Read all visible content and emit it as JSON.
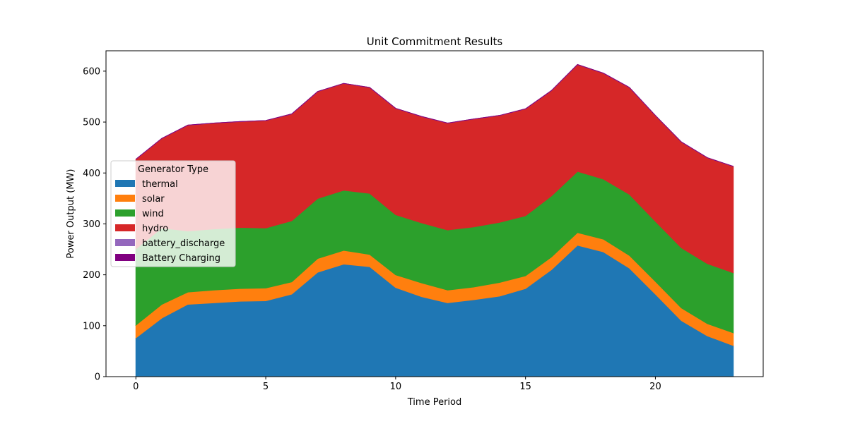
{
  "chart_data": {
    "type": "area",
    "stacked": true,
    "title": "Unit Commitment Results",
    "xlabel": "Time Period",
    "ylabel": "Power Output (MW)",
    "xlim": [
      -1.15,
      24.15
    ],
    "ylim": [
      0,
      640
    ],
    "xticks": [
      0,
      5,
      10,
      15,
      20
    ],
    "yticks": [
      0,
      100,
      200,
      300,
      400,
      500,
      600
    ],
    "grid": false,
    "legend": {
      "title": "Generator Type",
      "position": "center-left"
    },
    "x": [
      0,
      1,
      2,
      3,
      4,
      5,
      6,
      7,
      8,
      9,
      10,
      11,
      12,
      13,
      14,
      15,
      16,
      17,
      18,
      19,
      20,
      21,
      22,
      23
    ],
    "series": [
      {
        "name": "thermal",
        "color": "#1f77b4",
        "values": [
          76,
          115,
          142,
          145,
          148,
          149,
          162,
          205,
          221,
          216,
          175,
          157,
          145,
          151,
          158,
          173,
          210,
          258,
          245,
          213,
          162,
          110,
          80,
          61
        ]
      },
      {
        "name": "solar",
        "color": "#ff7f0e",
        "values": [
          25,
          27,
          24,
          25,
          25,
          25,
          24,
          27,
          27,
          24,
          25,
          27,
          25,
          25,
          27,
          25,
          25,
          25,
          25,
          25,
          25,
          25,
          24,
          25
        ]
      },
      {
        "name": "wind",
        "color": "#2ca02c",
        "values": [
          150,
          150,
          120,
          120,
          120,
          118,
          120,
          118,
          118,
          120,
          118,
          118,
          118,
          118,
          118,
          118,
          120,
          120,
          118,
          120,
          118,
          118,
          118,
          118
        ]
      },
      {
        "name": "hydro",
        "color": "#d62728",
        "values": [
          176,
          176,
          208,
          208,
          208,
          211,
          210,
          210,
          210,
          208,
          209,
          209,
          210,
          212,
          210,
          210,
          207,
          210,
          208,
          210,
          208,
          208,
          208,
          209
        ]
      },
      {
        "name": "battery_discharge",
        "color": "#9467bd",
        "values": [
          0,
          0,
          0,
          0,
          0,
          0,
          0,
          0,
          0,
          0,
          0,
          0,
          0,
          0,
          0,
          0,
          0,
          0,
          0,
          0,
          0,
          0,
          0,
          0
        ]
      },
      {
        "name": "Battery Charging",
        "color": "#800080",
        "values": [
          0,
          0,
          0,
          0,
          0,
          0,
          0,
          0,
          0,
          0,
          0,
          0,
          0,
          0,
          0,
          0,
          0,
          0,
          0,
          0,
          0,
          0,
          0,
          0
        ]
      }
    ]
  }
}
